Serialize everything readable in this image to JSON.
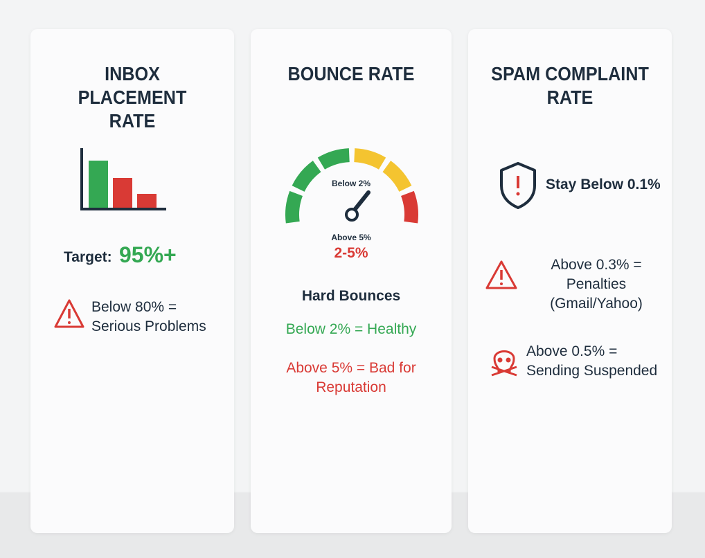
{
  "cards": [
    {
      "title": "INBOX PLACEMENT RATE",
      "target_label": "Target:",
      "target_value": "95%+",
      "warning": "Below 80% = Serious Problems"
    },
    {
      "title": "BOUNCE RATE",
      "gauge_top": "Below 2%",
      "gauge_bottom": "Above 5%",
      "gauge_middle": "2-5%",
      "subtitle": "Hard Bounces",
      "good": "Below 2% = Healthy",
      "bad": "Above 5% = Bad for Reputation"
    },
    {
      "title": "SPAM COMPLAINT RATE",
      "items": [
        "Stay Below 0.1%",
        "Above 0.3% = Penalties (Gmail/Yahoo)",
        "Above 0.5% = Sending Suspended"
      ]
    }
  ]
}
